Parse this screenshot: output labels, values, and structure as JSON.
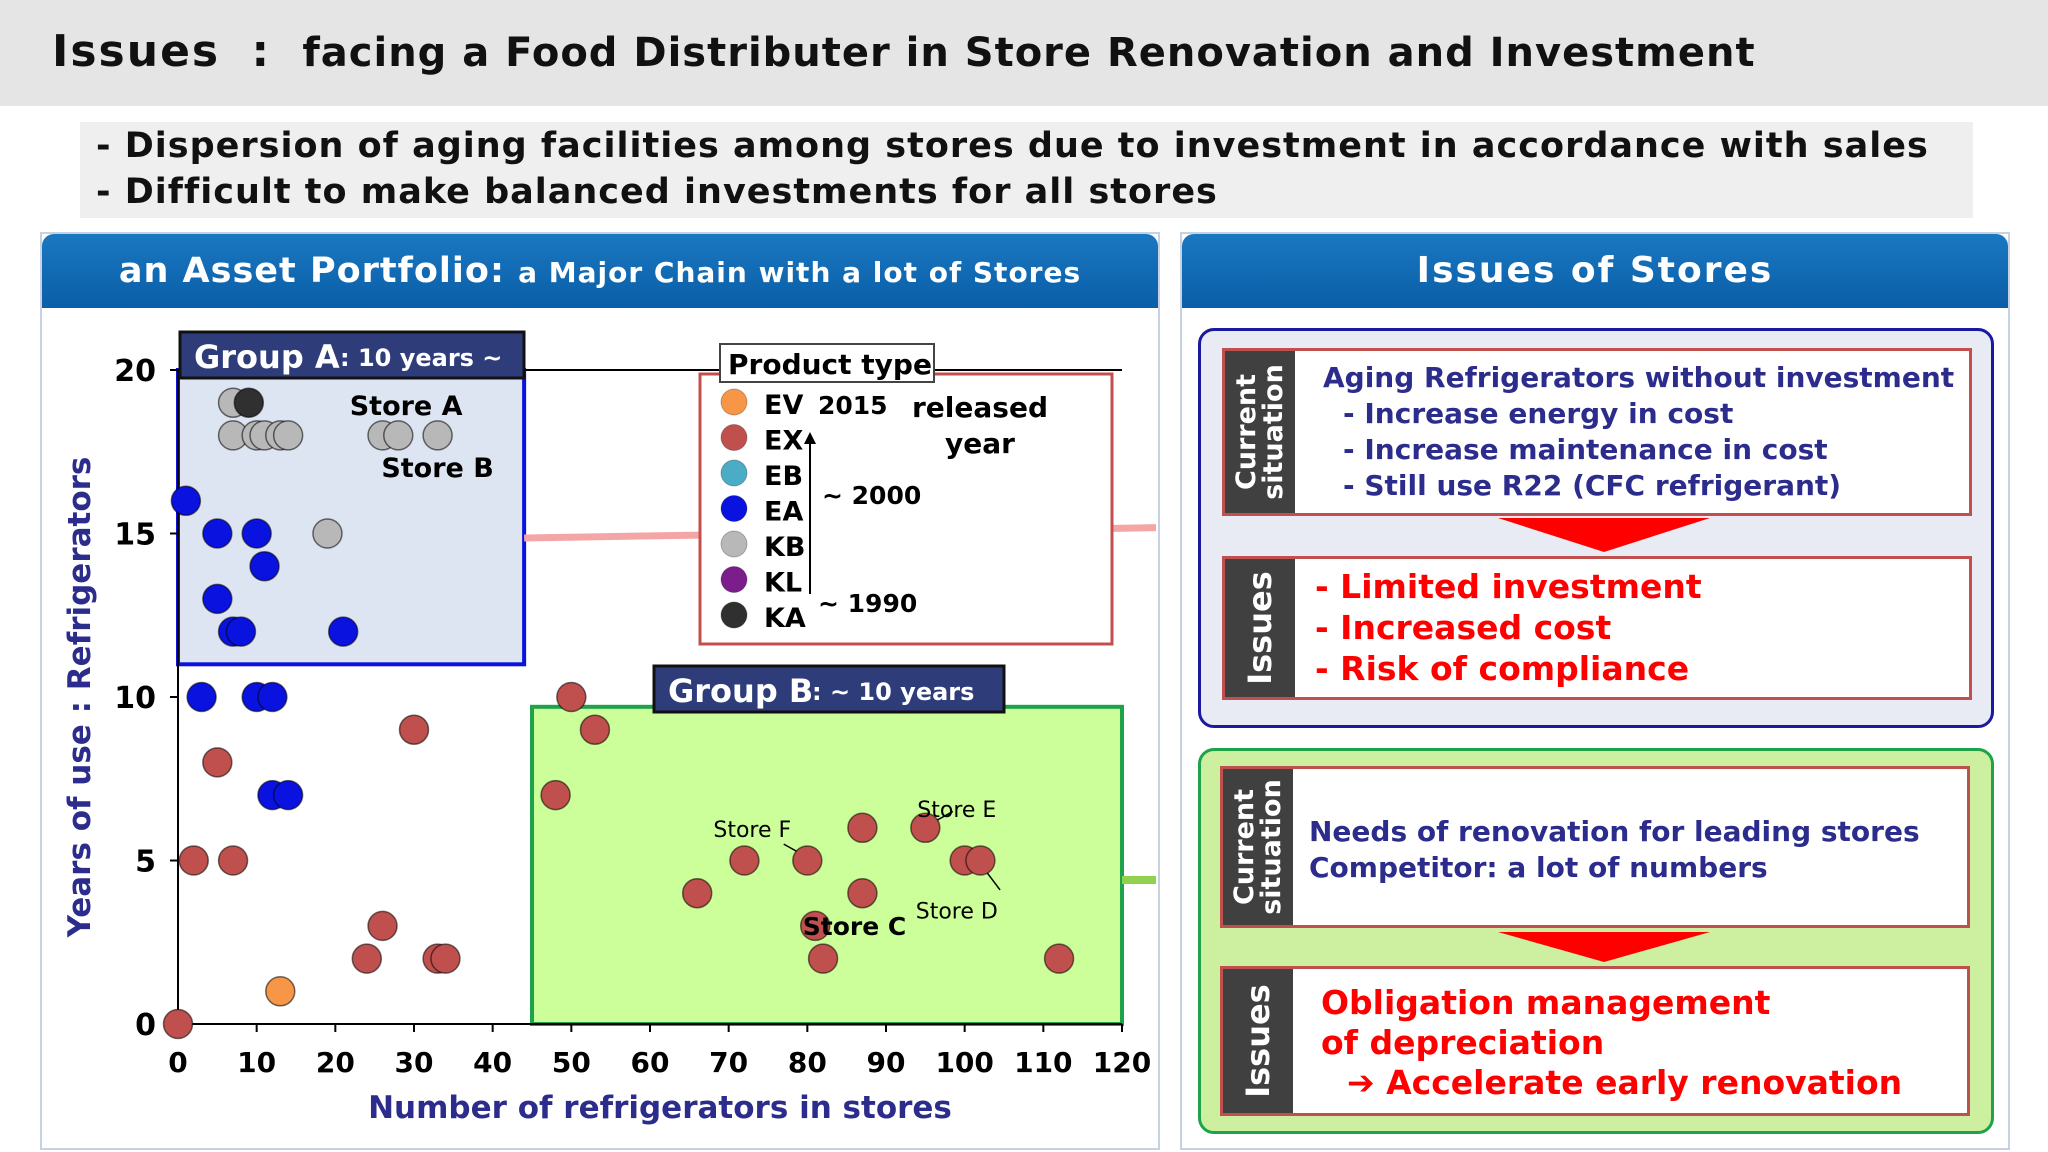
{
  "header": {
    "title_main": "Issues",
    "title_sep": ":",
    "title_sub": "facing a Food Distributer in Store Renovation and Investment"
  },
  "bullets": [
    "-  Dispersion of aging facilities among stores due to investment in accordance with sales",
    "-  Difficult to make balanced investments for all stores"
  ],
  "left_panel": {
    "title_main": "an Asset Portfolio:",
    "title_sub": "a Major Chain with a lot of Stores"
  },
  "right_panel": {
    "title": "Issues of Stores",
    "group_a": {
      "situation_label": [
        "Current",
        "situation"
      ],
      "situation_lines": [
        "Aging Refrigerators without investment",
        "- Increase energy in cost",
        "- Increase maintenance in cost",
        "- Still use R22 (CFC refrigerant)"
      ],
      "issues_label": "Issues",
      "issues_lines": [
        "-  Limited investment",
        "-  Increased cost",
        "-  Risk of compliance"
      ]
    },
    "group_b": {
      "situation_label": [
        "Current",
        "situation"
      ],
      "situation_lines": [
        "Needs of renovation for leading stores",
        "Competitor: a lot of numbers"
      ],
      "issues_label": "Issues",
      "issues_lines": [
        "Obligation management",
        "of depreciation",
        "➔ Accelerate early renovation"
      ]
    }
  },
  "colors": {
    "EV": "#f79646",
    "EX": "#c0504d",
    "EB": "#4bacc6",
    "EA": "#0a12e0",
    "KB": "#b8b8b8",
    "KL": "#7b1e8c",
    "KA": "#303030",
    "group_a_border": "#0a12e0",
    "group_b_border": "#1ea34a",
    "accent_red": "#ff0000",
    "header_blue": "#0a5ea8"
  },
  "chart_data": {
    "type": "scatter",
    "xlabel": "Number of refrigerators in stores",
    "ylabel": "Years of use : Refrigerators",
    "xlim": [
      0,
      120
    ],
    "ylim": [
      0,
      20
    ],
    "xticks": [
      0,
      10,
      20,
      30,
      40,
      50,
      60,
      70,
      80,
      90,
      100,
      110,
      120
    ],
    "yticks": [
      0,
      5,
      10,
      15,
      20
    ],
    "legend": {
      "title": "Product type",
      "entries": [
        "EV",
        "EX",
        "EB",
        "EA",
        "KB",
        "KL",
        "KA"
      ],
      "year_2015": "2015",
      "year_2000": "~ 2000",
      "year_1990": "~ 1990",
      "released_year": "released year"
    },
    "groups": [
      {
        "label": "Group A",
        "sub": ": 10 years ~",
        "x_range": [
          0,
          44
        ],
        "y_range": [
          11,
          20
        ]
      },
      {
        "label": "Group B",
        "sub": ": ~ 10 years",
        "x_range": [
          45,
          120
        ],
        "y_range": [
          0,
          9.7
        ]
      }
    ],
    "annotations": [
      {
        "text": "Store A",
        "x": 29,
        "y": 18.9
      },
      {
        "text": "Store B",
        "x": 33,
        "y": 17
      },
      {
        "text": "Store F",
        "x": 73,
        "y": 6
      },
      {
        "text": "Store E",
        "x": 99,
        "y": 6.6
      },
      {
        "text": "Store C",
        "x": 86,
        "y": 3
      },
      {
        "text": "Store D",
        "x": 99,
        "y": 3.5
      }
    ],
    "points": [
      {
        "x": 0,
        "y": 0,
        "type": "EX"
      },
      {
        "x": 2,
        "y": 5,
        "type": "EX"
      },
      {
        "x": 5,
        "y": 8,
        "type": "EX"
      },
      {
        "x": 7,
        "y": 5,
        "type": "EX"
      },
      {
        "x": 13,
        "y": 1,
        "type": "EV"
      },
      {
        "x": 24,
        "y": 2,
        "type": "EX"
      },
      {
        "x": 26,
        "y": 3,
        "type": "EX"
      },
      {
        "x": 30,
        "y": 9,
        "type": "EX"
      },
      {
        "x": 33,
        "y": 2,
        "type": "EX"
      },
      {
        "x": 34,
        "y": 2,
        "type": "EX"
      },
      {
        "x": 48,
        "y": 7,
        "type": "EX"
      },
      {
        "x": 50,
        "y": 10,
        "type": "EX"
      },
      {
        "x": 53,
        "y": 9,
        "type": "EX"
      },
      {
        "x": 66,
        "y": 4,
        "type": "EX"
      },
      {
        "x": 72,
        "y": 5,
        "type": "EX"
      },
      {
        "x": 80,
        "y": 5,
        "type": "EX"
      },
      {
        "x": 81,
        "y": 3,
        "type": "EX"
      },
      {
        "x": 82,
        "y": 2,
        "type": "EX"
      },
      {
        "x": 87,
        "y": 6,
        "type": "EX"
      },
      {
        "x": 87,
        "y": 4,
        "type": "EX"
      },
      {
        "x": 95,
        "y": 6,
        "type": "EX"
      },
      {
        "x": 100,
        "y": 5,
        "type": "EX"
      },
      {
        "x": 102,
        "y": 5,
        "type": "EX"
      },
      {
        "x": 112,
        "y": 2,
        "type": "EX"
      },
      {
        "x": 1,
        "y": 16,
        "type": "EA"
      },
      {
        "x": 5,
        "y": 15,
        "type": "EA"
      },
      {
        "x": 10,
        "y": 15,
        "type": "EA"
      },
      {
        "x": 11,
        "y": 14,
        "type": "EA"
      },
      {
        "x": 5,
        "y": 13,
        "type": "EA"
      },
      {
        "x": 7,
        "y": 12,
        "type": "EA"
      },
      {
        "x": 8,
        "y": 12,
        "type": "EA"
      },
      {
        "x": 21,
        "y": 12,
        "type": "EA"
      },
      {
        "x": 3,
        "y": 10,
        "type": "EA"
      },
      {
        "x": 10,
        "y": 10,
        "type": "EA"
      },
      {
        "x": 12,
        "y": 10,
        "type": "EA"
      },
      {
        "x": 12,
        "y": 7,
        "type": "EA"
      },
      {
        "x": 14,
        "y": 7,
        "type": "EA"
      },
      {
        "x": 19,
        "y": 15,
        "type": "KB"
      },
      {
        "x": 7,
        "y": 19,
        "type": "KB"
      },
      {
        "x": 9,
        "y": 19,
        "type": "KA"
      },
      {
        "x": 7,
        "y": 18,
        "type": "KB"
      },
      {
        "x": 10,
        "y": 18,
        "type": "KB"
      },
      {
        "x": 11,
        "y": 18,
        "type": "KB"
      },
      {
        "x": 13,
        "y": 18,
        "type": "KB"
      },
      {
        "x": 14,
        "y": 18,
        "type": "KB"
      },
      {
        "x": 26,
        "y": 18,
        "type": "KB"
      },
      {
        "x": 28,
        "y": 18,
        "type": "KB"
      },
      {
        "x": 33,
        "y": 18,
        "type": "KB"
      }
    ]
  }
}
